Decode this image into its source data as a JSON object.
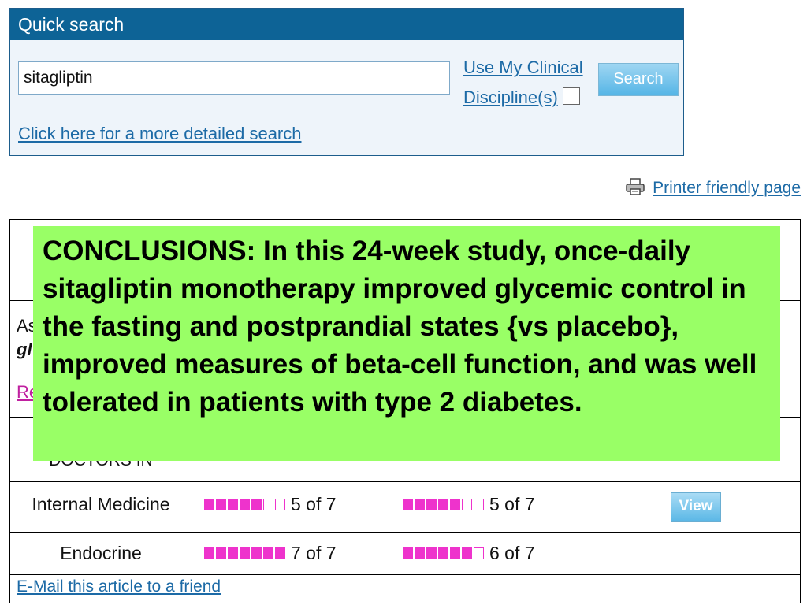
{
  "quick_search": {
    "title": "Quick search",
    "input_value": "sitagliptin",
    "clinical_line1": "Use My Clinical",
    "clinical_line2": "Discipline(s)",
    "search_label": "Search",
    "detailed_link": "Click here for a more detailed search"
  },
  "printer_link": "Printer friendly page",
  "table": {
    "partial_left_1": "As",
    "partial_left_2": "gl",
    "partial_left_3": "Re",
    "partial_header": "DOCTORS IN",
    "rows": [
      {
        "label": "Internal Medicine",
        "rating1": {
          "filled": 5,
          "total": 7,
          "text": "5 of 7"
        },
        "rating2": {
          "filled": 5,
          "total": 7,
          "text": "5 of 7"
        },
        "action": "View"
      },
      {
        "label": "Endocrine",
        "rating1": {
          "filled": 7,
          "total": 7,
          "text": "7 of 7"
        },
        "rating2": {
          "filled": 6,
          "total": 7,
          "text": "6 of 7"
        },
        "action": ""
      }
    ]
  },
  "email_link": "E-Mail this article to a friend",
  "overlay_text": "CONCLUSIONS: In this 24-week study, once-daily sitagliptin monotherapy improved glycemic control in the fasting and postprandial states {vs placebo}, improved measures of beta-cell function, and was well tolerated in patients with type 2 diabetes.",
  "colors": {
    "header_blue": "#0d6396",
    "link_blue": "#1c6aa6",
    "rating_magenta": "#ee33cc",
    "overlay_green": "#99ff66"
  }
}
